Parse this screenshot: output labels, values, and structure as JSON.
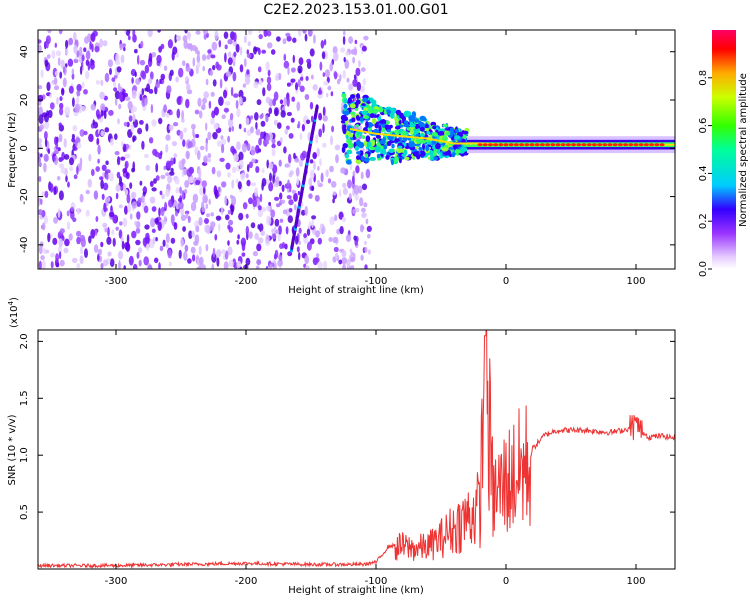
{
  "title": "C2E2.2023.153.01.00.G01",
  "chart_data": [
    {
      "type": "heatmap",
      "xlabel": "Height of straight line (km)",
      "ylabel": "Frequency (Hz)",
      "xlim": [
        -360,
        130
      ],
      "ylim": [
        -50,
        49
      ],
      "xticks": [
        "-300",
        "-200",
        "-100",
        "0",
        "100"
      ],
      "yticks": [
        "40",
        "20",
        "0",
        "-20",
        "-40"
      ],
      "grid": false,
      "colorbar": {
        "label": "Normalized spectral amplitude",
        "ticks": [
          "0.0",
          "0.2",
          "0.4",
          "0.6",
          "0.8"
        ],
        "range": [
          0,
          1
        ]
      },
      "tone_trace": {
        "x": [
          -120,
          -100,
          -80,
          -60,
          -40,
          -20,
          0,
          20,
          40,
          60,
          80,
          100,
          120,
          130
        ],
        "y": [
          8,
          6,
          5,
          4,
          2,
          2,
          1.5,
          1.5,
          1.5,
          1.5,
          1.5,
          1.5,
          1.5,
          1.5
        ]
      }
    },
    {
      "type": "line",
      "xlabel": "Height of straight line (km)",
      "ylabel": "SNR (10 * v/v)",
      "y_multiplier": "(x10",
      "y_multiplier_exp": "4",
      "xlim": [
        -360,
        130
      ],
      "ylim": [
        0,
        2.1
      ],
      "xticks": [
        "-300",
        "-200",
        "-100",
        "0",
        "100"
      ],
      "yticks": [
        "0.5",
        "1.0",
        "1.5",
        "2.0"
      ],
      "color": "#ee3333",
      "series": [
        {
          "x": [
            -360,
            -300,
            -250,
            -200,
            -150,
            -110,
            -100,
            -90,
            -80,
            -70,
            -60,
            -50,
            -40,
            -30,
            -20,
            -16,
            -10,
            0,
            10,
            20,
            30,
            40,
            50,
            60,
            70,
            80,
            90,
            100,
            110,
            120,
            130
          ],
          "y": [
            0.03,
            0.03,
            0.04,
            0.05,
            0.04,
            0.04,
            0.06,
            0.2,
            0.22,
            0.2,
            0.22,
            0.3,
            0.4,
            0.5,
            0.6,
            2.05,
            0.7,
            0.85,
            0.95,
            1.05,
            1.18,
            1.22,
            1.22,
            1.22,
            1.21,
            1.2,
            1.22,
            1.25,
            1.16,
            1.17,
            1.15
          ]
        }
      ]
    }
  ]
}
